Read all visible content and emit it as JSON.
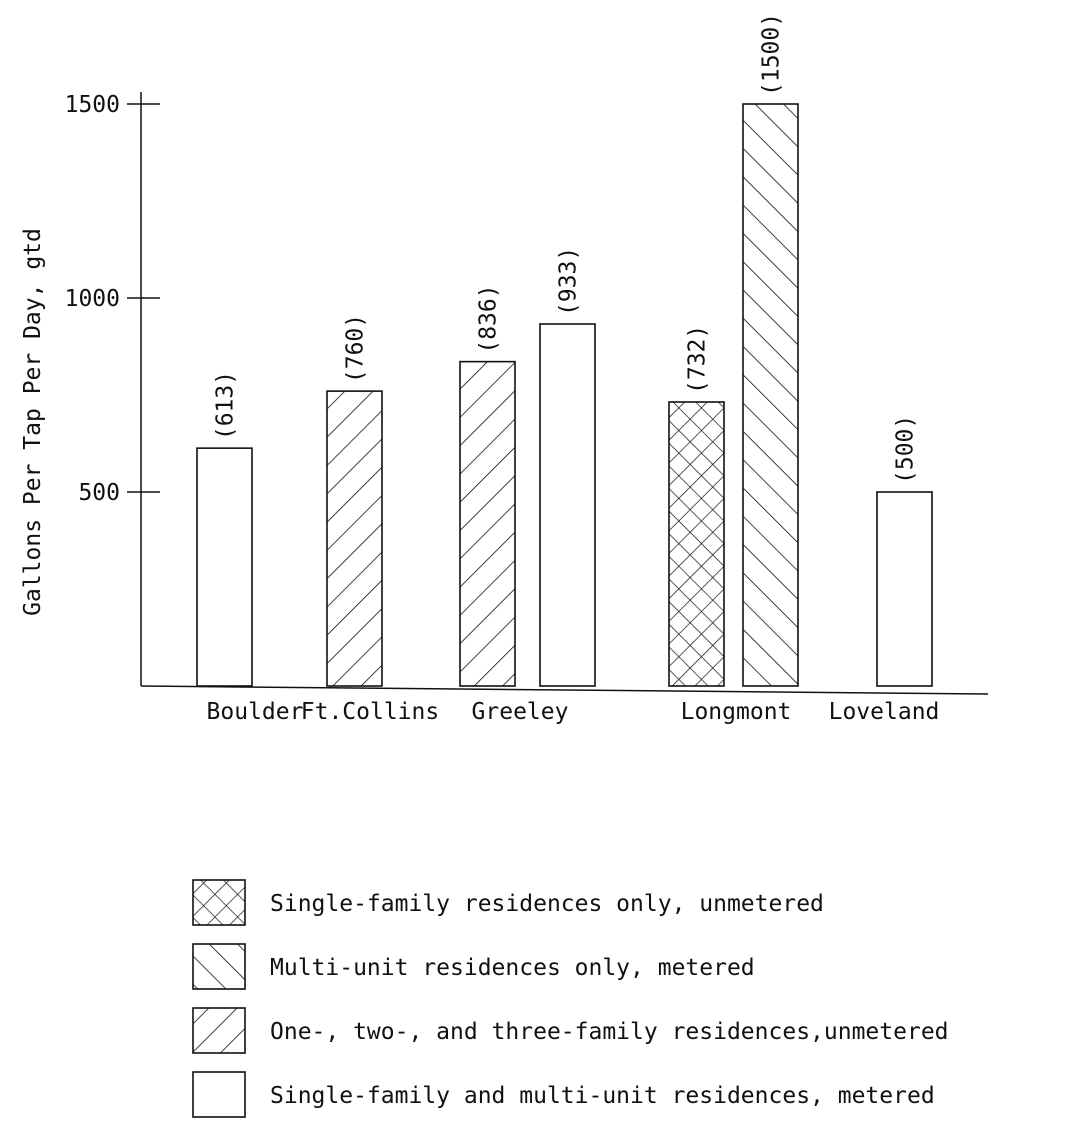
{
  "chart_data": {
    "type": "bar",
    "title": "",
    "ylabel": "Gallons Per Tap Per Day, gtd",
    "xlabel": "",
    "ylim": [
      0,
      1500
    ],
    "yticks": [
      500,
      1000,
      1500
    ],
    "categories": [
      "Boulder",
      "Ft.Collins",
      "Greeley",
      "Longmont",
      "Loveland"
    ],
    "bars": [
      {
        "category": "Boulder",
        "value": 613,
        "label": "(613)",
        "pattern": "plain"
      },
      {
        "category": "Ft.Collins",
        "value": 760,
        "label": "(760)",
        "pattern": "backslash"
      },
      {
        "category": "Greeley",
        "value": 836,
        "label": "(836)",
        "pattern": "backslash"
      },
      {
        "category": "Greeley",
        "value": 933,
        "label": "(933)",
        "pattern": "plain"
      },
      {
        "category": "Longmont",
        "value": 732,
        "label": "(732)",
        "pattern": "cross"
      },
      {
        "category": "Longmont",
        "value": 1500,
        "label": "(1500)",
        "pattern": "forward"
      },
      {
        "category": "Loveland",
        "value": 500,
        "label": "(500)",
        "pattern": "plain"
      }
    ],
    "legend": [
      {
        "pattern": "cross",
        "label": "Single-family residences only, unmetered"
      },
      {
        "pattern": "forward",
        "label": "Multi-unit residences only, metered"
      },
      {
        "pattern": "backslash",
        "label": "One-, two-, and three-family residences,unmetered"
      },
      {
        "pattern": "plain",
        "label": "Single-family and multi-unit residences, metered"
      }
    ],
    "legend_position": "bottom",
    "grid": false
  }
}
